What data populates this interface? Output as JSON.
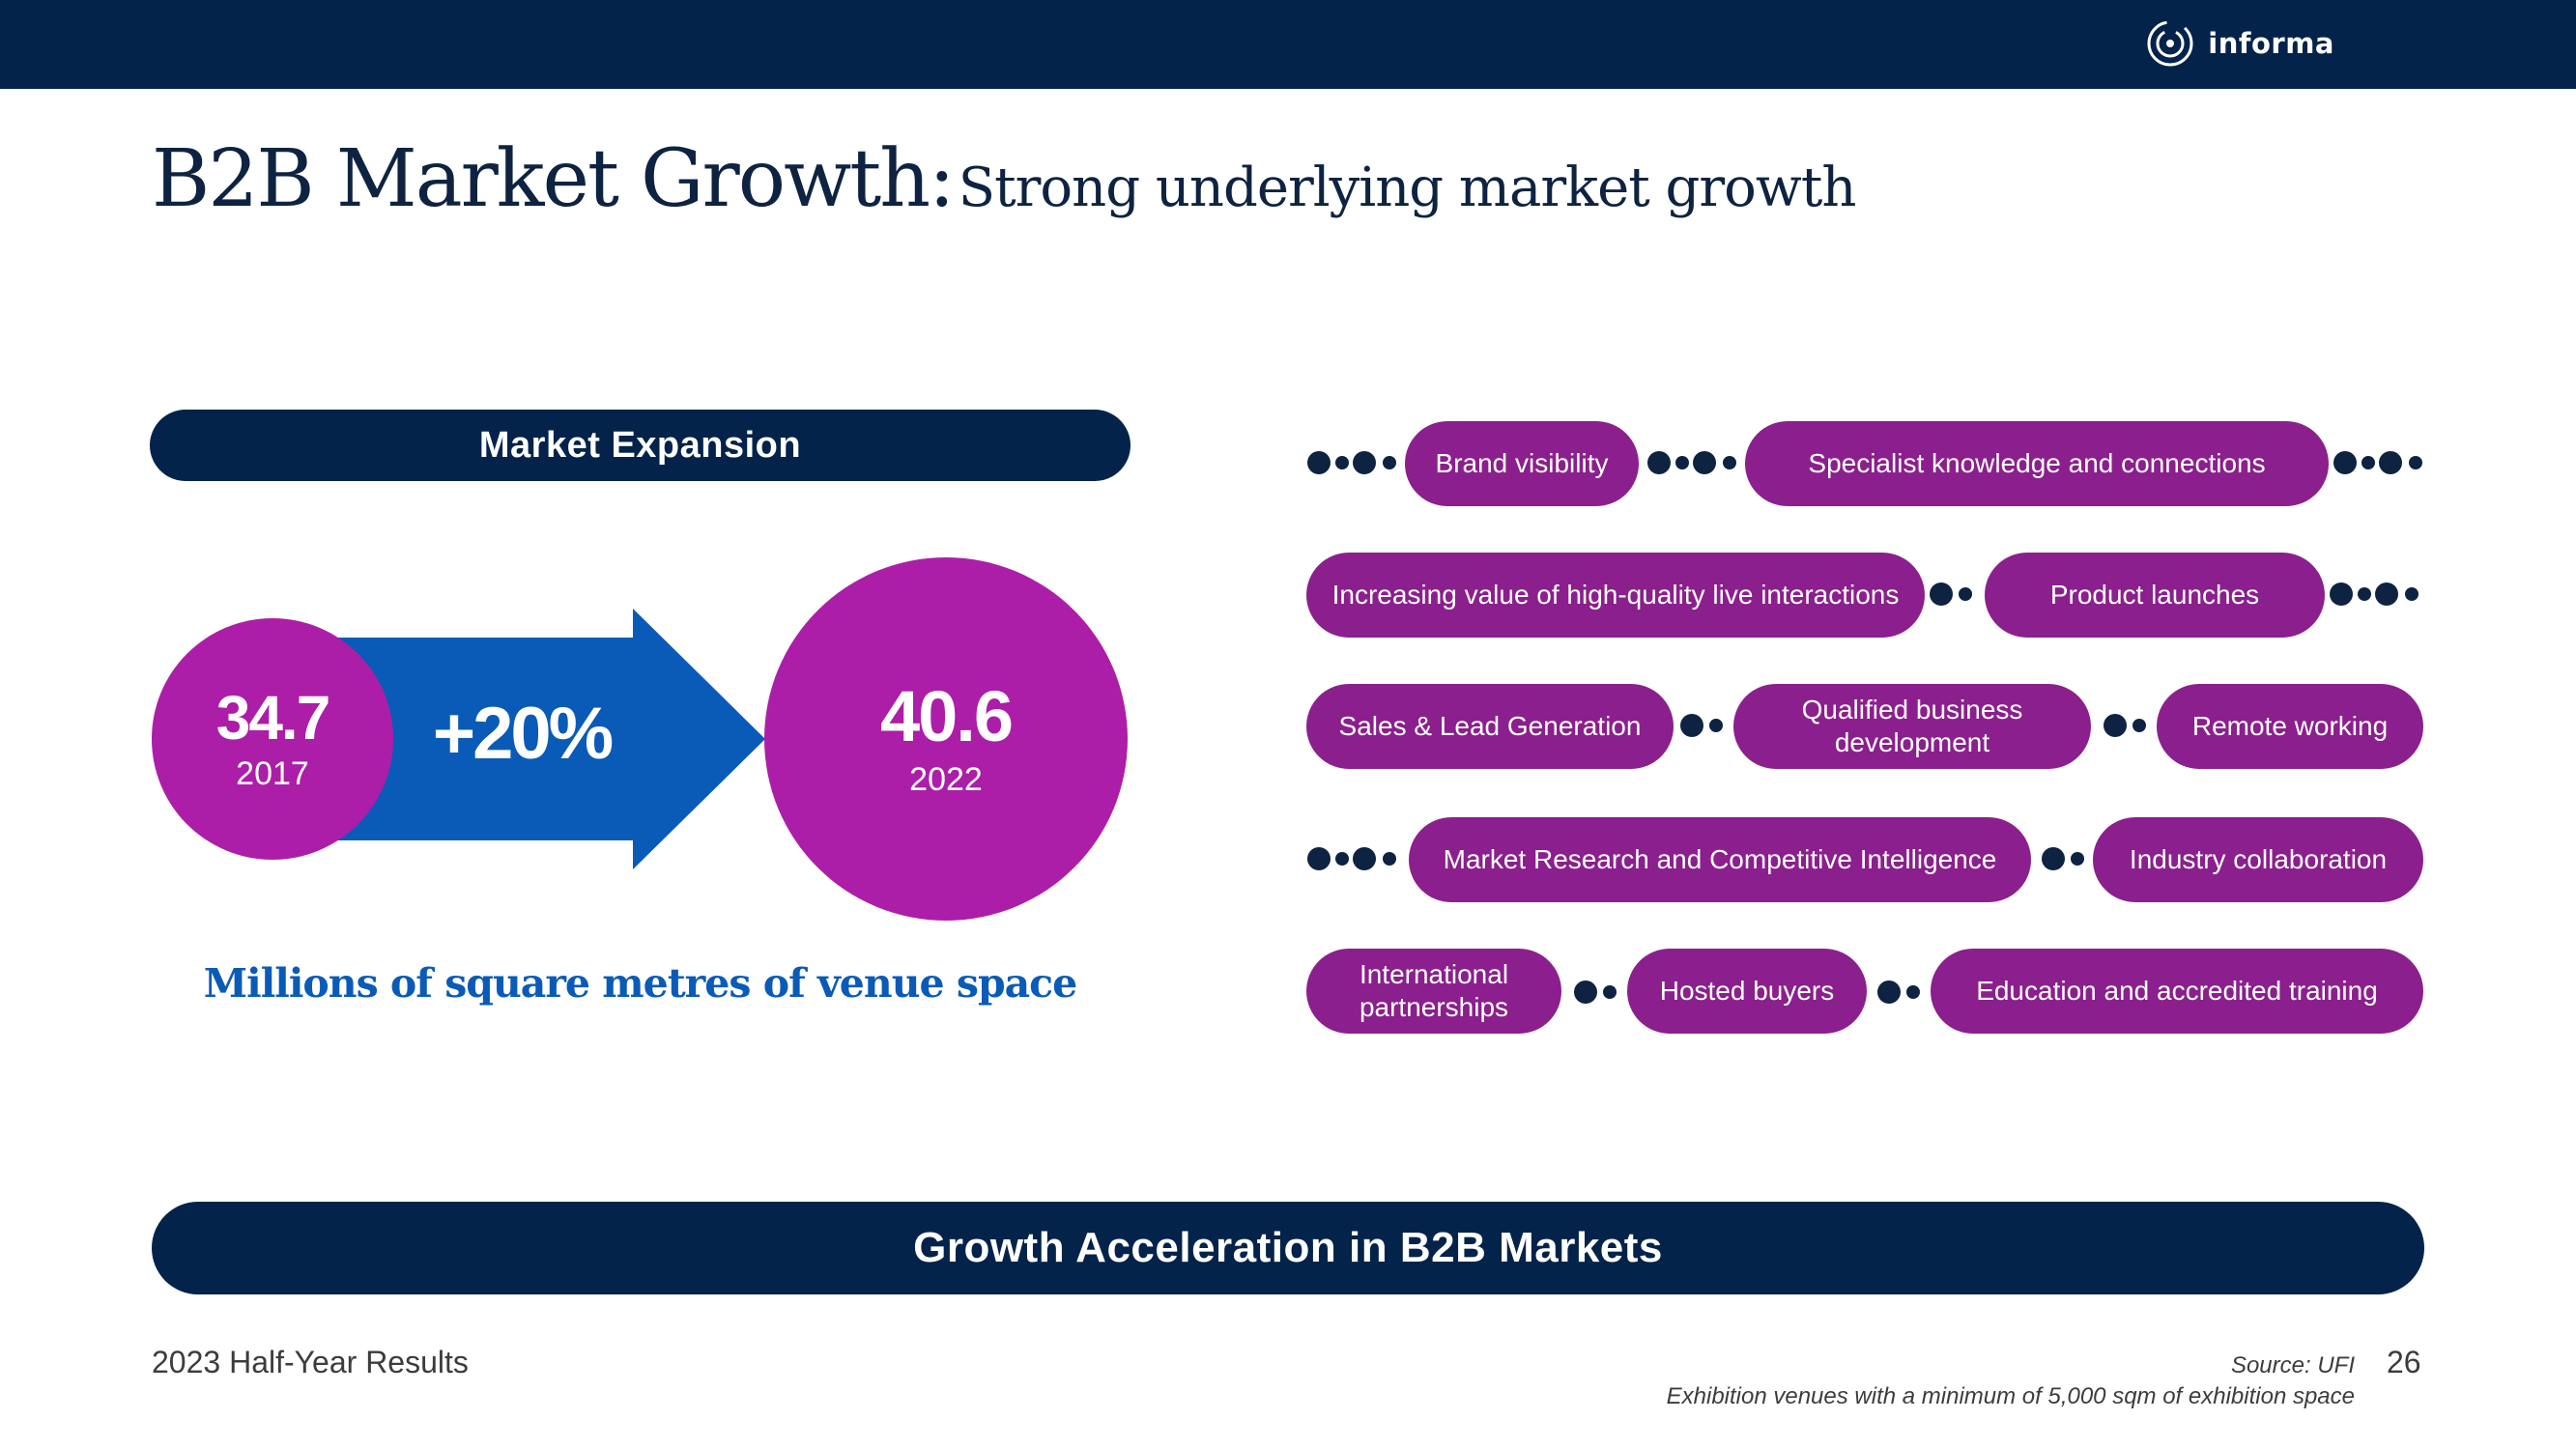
{
  "header": {
    "logo_text": "informa"
  },
  "title": {
    "main": "B2B Market Growth:",
    "sub": "Strong underlying market growth"
  },
  "market_expansion": {
    "label": "Market Expansion",
    "start": {
      "value": "34.7",
      "year": "2017"
    },
    "change": "+20%",
    "end": {
      "value": "40.6",
      "year": "2022"
    },
    "caption": "Millions of square metres of venue space"
  },
  "tags": [
    "Brand visibility",
    "Specialist knowledge and connections",
    "Increasing value of high-quality live interactions",
    "Product launches",
    "Sales & Lead Generation",
    "Qualified business development",
    "Remote working",
    "Market Research and Competitive Intelligence",
    "Industry collaboration",
    "International partnerships",
    "Hosted buyers",
    "Education and accredited training"
  ],
  "bottom_banner": "Growth Acceleration in B2B Markets",
  "footer": {
    "left": "2023 Half-Year Results",
    "source": "Source: UFI",
    "note": "Exhibition venues with a minimum of 5,000 sqm of exhibition space",
    "page": "26"
  },
  "colors": {
    "navy": "#03234a",
    "magenta": "#ac1ea8",
    "purple": "#8b1f8d",
    "blue": "#0a5bb7"
  }
}
